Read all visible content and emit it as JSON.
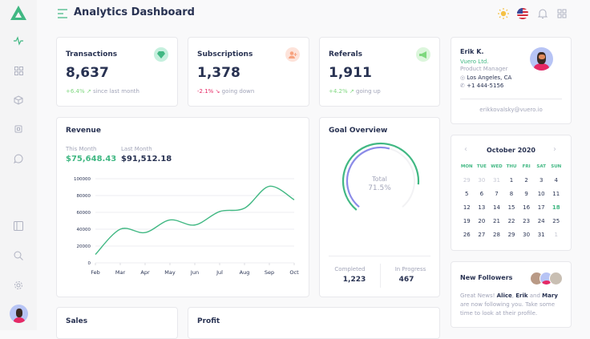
{
  "header": {
    "title": "Analytics Dashboard"
  },
  "sidebar": {
    "items": [
      "activity",
      "grid",
      "box",
      "cpu",
      "message",
      "sidebar-panel",
      "search",
      "settings"
    ]
  },
  "stats": [
    {
      "title": "Transactions",
      "value": "8,637",
      "change": "+6.4%",
      "note": "since last month",
      "color": "#41b883",
      "icon": "diamond-icon"
    },
    {
      "title": "Subscriptions",
      "value": "1,378",
      "change": "-2.1%",
      "note": "going down",
      "color": "#e62965",
      "icon": "user-plus-icon"
    },
    {
      "title": "Referals",
      "value": "1,911",
      "change": "+4.2%",
      "note": "going up",
      "color": "#7fd87f",
      "icon": "megaphone-icon"
    }
  ],
  "profile": {
    "name": "Erik K.",
    "company": "Vuero Ltd.",
    "role": "Product Manager",
    "location": "Los Angeles, CA",
    "phone": "+1 444-5156",
    "email": "erikkovalsky@vuero.io"
  },
  "revenue": {
    "title": "Revenue",
    "this_label": "This Month",
    "this_value": "$75,648.43",
    "last_label": "Last Month",
    "last_value": "$91,512.18"
  },
  "chart_data": {
    "type": "line",
    "categories": [
      "Feb",
      "Mar",
      "Apr",
      "May",
      "Jun",
      "Jul",
      "Aug",
      "Sep",
      "Oct"
    ],
    "values": [
      10000,
      40000,
      36000,
      51000,
      45000,
      61000,
      65000,
      91000,
      75000
    ],
    "ylim": [
      0,
      100000
    ],
    "yticks": [
      0,
      20000,
      40000,
      60000,
      80000,
      100000
    ],
    "grid": true,
    "color": "#41b883"
  },
  "goal": {
    "title": "Goal Overview",
    "total_label": "Total",
    "total_value": "71.5%",
    "completed_label": "Completed",
    "completed": "1,223",
    "progress_label": "In Progress",
    "progress": "467",
    "colors": [
      "#41b883",
      "#8b8be8"
    ]
  },
  "calendar": {
    "month": "October 2020",
    "days": [
      "MON",
      "TUE",
      "WED",
      "THU",
      "FRI",
      "SAT",
      "SUN"
    ],
    "weeks": [
      [
        "29",
        "30",
        "31",
        "1",
        "2",
        "3",
        "4"
      ],
      [
        "5",
        "6",
        "7",
        "8",
        "9",
        "10",
        "11"
      ],
      [
        "12",
        "13",
        "14",
        "15",
        "16",
        "17",
        "18"
      ],
      [
        "19",
        "20",
        "21",
        "22",
        "23",
        "24",
        "25"
      ],
      [
        "26",
        "27",
        "28",
        "29",
        "30",
        "31",
        "1"
      ]
    ],
    "today": "18"
  },
  "followers": {
    "title": "New Followers",
    "pre": "Great News! ",
    "n1": "Alice",
    "s1": ", ",
    "n2": "Erik",
    "s2": " and ",
    "n3": "Mary",
    "post": " are now following you. Take some time to look at their profile."
  },
  "bottom": {
    "sales": "Sales",
    "profit": "Profit"
  }
}
